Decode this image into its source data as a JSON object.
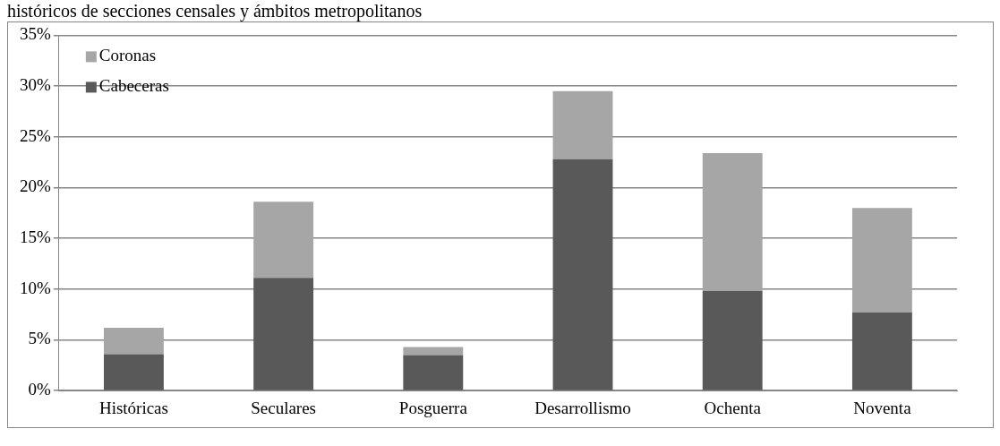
{
  "chart_data": {
    "type": "bar",
    "title": "históricos de secciones censales y ámbitos metropolitanos",
    "categories": [
      "Históricas",
      "Seculares",
      "Posguerra",
      "Desarrollismo",
      "Ochenta",
      "Noventa"
    ],
    "series": [
      {
        "name": "Cabeceras",
        "color": "#595959",
        "values": [
          3.6,
          11.1,
          3.5,
          22.8,
          9.8,
          7.7
        ]
      },
      {
        "name": "Coronas",
        "color": "#a6a6a6",
        "values": [
          2.6,
          7.5,
          0.8,
          6.7,
          13.6,
          10.3
        ]
      }
    ],
    "stacked": true,
    "ylim": [
      0,
      35
    ],
    "yticks": [
      {
        "value": 0,
        "label": "0%"
      },
      {
        "value": 5,
        "label": "5%"
      },
      {
        "value": 10,
        "label": "10%"
      },
      {
        "value": 15,
        "label": "15%"
      },
      {
        "value": 20,
        "label": "20%"
      },
      {
        "value": 25,
        "label": "25%"
      },
      {
        "value": 30,
        "label": "30%"
      },
      {
        "value": 35,
        "label": "35%"
      }
    ],
    "grid": "y",
    "legend": "top left"
  }
}
